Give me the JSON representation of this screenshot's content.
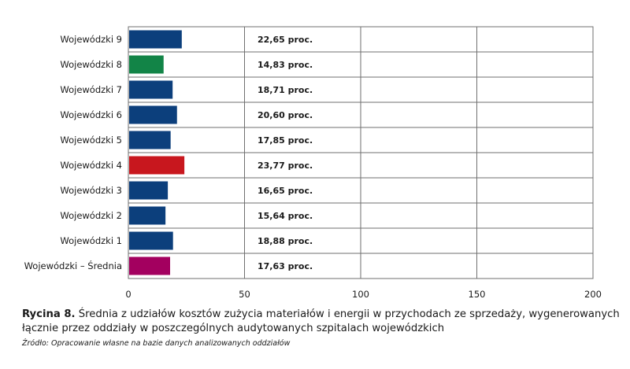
{
  "chart_data": {
    "type": "bar",
    "orientation": "horizontal",
    "categories": [
      "Wojewódzki 9",
      "Wojewódzki 8",
      "Wojewódzki 7",
      "Wojewódzki 6",
      "Wojewódzki 5",
      "Wojewódzki 4",
      "Wojewódzki 3",
      "Wojewódzki 2",
      "Wojewódzki 1",
      "Wojewódzki – Średnia"
    ],
    "values": [
      22.65,
      14.83,
      18.71,
      20.6,
      17.85,
      23.77,
      16.65,
      15.64,
      18.88,
      17.63
    ],
    "value_labels": [
      "22,65 proc.",
      "14,83 proc.",
      "18,71 proc.",
      "20,60 proc.",
      "17,85 proc.",
      "23,77 proc.",
      "16,65 proc.",
      "15,64 proc.",
      "18,88 proc.",
      "17,63 proc."
    ],
    "colors": [
      "#0c3f7c",
      "#128447",
      "#0c3f7c",
      "#0c3f7c",
      "#0c3f7c",
      "#c8171e",
      "#0c3f7c",
      "#0c3f7c",
      "#0c3f7c",
      "#a3005f"
    ],
    "x_ticks": [
      0,
      50,
      100,
      150,
      200
    ],
    "xlim": [
      0,
      200
    ],
    "grid": true
  },
  "caption": {
    "label": "Rycina 8.",
    "text": "Średnia z udziałów kosztów zużycia materiałów i energii w przychodach ze sprzedaży, wygenerowanych łącznie przez oddziały w poszczególnych audytowanych szpitalach wojewódzkich"
  },
  "source": "Źródło: Opracowanie własne na bazie danych analizowanych oddziałów"
}
